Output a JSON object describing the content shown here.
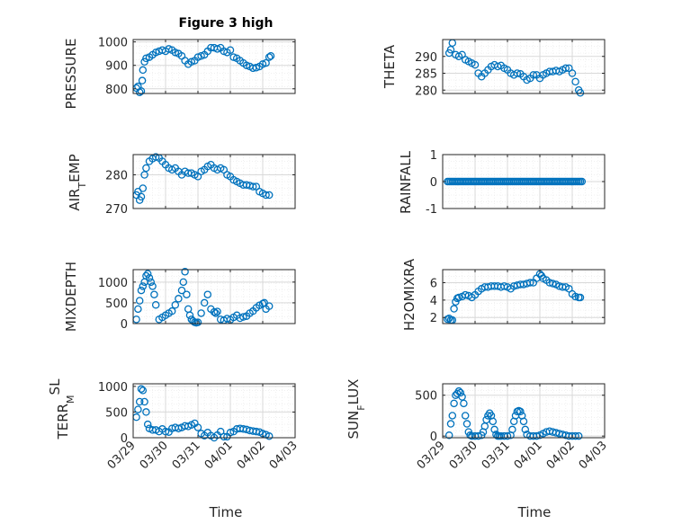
{
  "figure": {
    "title": "Figure 3 high",
    "xlabel": "Time",
    "xticks": [
      "03/29",
      "03/30",
      "03/31",
      "04/01",
      "04/02",
      "04/03"
    ],
    "marker_color": "#0072BD",
    "grid_color": "#d9d9d9",
    "axes_color": "#262626"
  },
  "chart_data": [
    {
      "type": "scatter",
      "ylabel": "PRESSURE",
      "yticks": [
        "800",
        "900",
        "1000"
      ],
      "ylim": [
        780,
        1010
      ],
      "xlim": [
        0,
        5
      ],
      "x": [
        0.1,
        0.15,
        0.2,
        0.25,
        0.28,
        0.3,
        0.35,
        0.4,
        0.5,
        0.6,
        0.7,
        0.8,
        0.9,
        1.0,
        1.1,
        1.2,
        1.3,
        1.4,
        1.5,
        1.6,
        1.7,
        1.8,
        1.9,
        2.0,
        2.1,
        2.2,
        2.3,
        2.4,
        2.5,
        2.6,
        2.7,
        2.8,
        2.9,
        3.0,
        3.1,
        3.2,
        3.3,
        3.4,
        3.5,
        3.6,
        3.7,
        3.8,
        3.9,
        4.0,
        4.1,
        4.2,
        4.25
      ],
      "y": [
        803,
        810,
        785,
        790,
        835,
        880,
        915,
        930,
        935,
        945,
        955,
        960,
        965,
        960,
        970,
        965,
        955,
        950,
        940,
        920,
        905,
        915,
        920,
        935,
        940,
        945,
        960,
        975,
        975,
        970,
        975,
        960,
        955,
        965,
        935,
        930,
        920,
        910,
        900,
        895,
        888,
        890,
        895,
        905,
        910,
        935,
        940
      ]
    },
    {
      "type": "scatter",
      "ylabel": "THETA",
      "yticks": [
        "280",
        "285",
        "290"
      ],
      "ylim": [
        279,
        295
      ],
      "xlim": [
        0,
        5
      ],
      "x": [
        0.2,
        0.25,
        0.3,
        0.4,
        0.5,
        0.6,
        0.7,
        0.8,
        0.9,
        1.0,
        1.1,
        1.2,
        1.3,
        1.4,
        1.5,
        1.6,
        1.7,
        1.8,
        1.9,
        2.0,
        2.1,
        2.2,
        2.3,
        2.4,
        2.5,
        2.6,
        2.7,
        2.8,
        2.9,
        3.0,
        3.1,
        3.2,
        3.3,
        3.4,
        3.5,
        3.6,
        3.7,
        3.8,
        3.9,
        4.0,
        4.1,
        4.2,
        4.25
      ],
      "y": [
        291,
        292,
        294,
        290.5,
        290,
        290.5,
        289,
        288.5,
        288,
        287.5,
        285,
        284,
        285,
        286,
        287,
        287.5,
        287,
        287.3,
        286.5,
        286,
        285,
        284.5,
        285,
        284.8,
        284,
        283,
        283.5,
        284.5,
        284.5,
        283.5,
        284.5,
        285,
        285.5,
        285.5,
        285.8,
        285.5,
        286,
        286.5,
        286.5,
        285,
        282.5,
        280,
        279.2
      ]
    },
    {
      "type": "scatter",
      "ylabel": "AIR_TEMP",
      "yticks": [
        "270",
        "280"
      ],
      "ylim": [
        270,
        286
      ],
      "xlim": [
        0,
        5
      ],
      "x": [
        0.1,
        0.15,
        0.2,
        0.25,
        0.3,
        0.35,
        0.4,
        0.5,
        0.6,
        0.7,
        0.8,
        0.9,
        1.0,
        1.1,
        1.2,
        1.3,
        1.4,
        1.5,
        1.6,
        1.7,
        1.8,
        1.9,
        2.0,
        2.1,
        2.2,
        2.3,
        2.4,
        2.5,
        2.6,
        2.7,
        2.8,
        2.9,
        3.0,
        3.1,
        3.2,
        3.3,
        3.4,
        3.5,
        3.6,
        3.7,
        3.8,
        3.9,
        4.0,
        4.1,
        4.2
      ],
      "y": [
        274,
        275,
        272.5,
        273.5,
        276,
        280,
        282,
        284,
        284.8,
        285.3,
        285,
        284,
        283,
        282,
        281.5,
        282,
        281,
        280,
        281,
        280.5,
        280.5,
        280,
        279.5,
        281,
        281.5,
        282.5,
        283,
        282,
        281.5,
        282,
        281.5,
        280,
        279.5,
        278.5,
        278,
        277.5,
        277,
        277,
        276.8,
        276.5,
        276.5,
        275,
        274.5,
        274,
        274
      ]
    },
    {
      "type": "scatter",
      "ylabel": "RAINFALL",
      "yticks": [
        "-1",
        "0",
        "1"
      ],
      "ylim": [
        -1,
        1
      ],
      "xlim": [
        0,
        5
      ],
      "x_range": [
        0.15,
        4.3
      ],
      "y_constant": 0
    },
    {
      "type": "scatter",
      "ylabel": "MIXDEPTH",
      "yticks": [
        "0",
        "500",
        "1000"
      ],
      "ylim": [
        0,
        1300
      ],
      "xlim": [
        0,
        5
      ],
      "x": [
        0.1,
        0.15,
        0.2,
        0.25,
        0.3,
        0.35,
        0.4,
        0.45,
        0.5,
        0.55,
        0.6,
        0.65,
        0.7,
        0.8,
        0.9,
        1.0,
        1.1,
        1.2,
        1.3,
        1.4,
        1.5,
        1.55,
        1.6,
        1.65,
        1.7,
        1.75,
        1.8,
        1.85,
        1.9,
        1.95,
        2.0,
        2.1,
        2.2,
        2.3,
        2.4,
        2.5,
        2.55,
        2.6,
        2.7,
        2.8,
        2.9,
        3.0,
        3.1,
        3.2,
        3.3,
        3.4,
        3.5,
        3.6,
        3.7,
        3.8,
        3.9,
        4.0,
        4.05,
        4.1,
        4.2
      ],
      "y": [
        100,
        350,
        550,
        800,
        900,
        1000,
        1150,
        1200,
        1100,
        1000,
        900,
        700,
        450,
        100,
        150,
        200,
        250,
        300,
        450,
        600,
        800,
        1000,
        1250,
        700,
        350,
        200,
        100,
        60,
        30,
        20,
        30,
        250,
        500,
        700,
        350,
        280,
        250,
        290,
        100,
        80,
        120,
        90,
        150,
        200,
        130,
        160,
        180,
        250,
        300,
        380,
        440,
        480,
        500,
        350,
        420
      ]
    },
    {
      "type": "scatter",
      "ylabel": "H2OMIXRA",
      "yticks": [
        "2",
        "4",
        "6"
      ],
      "ylim": [
        1.3,
        7.5
      ],
      "xlim": [
        0,
        5
      ],
      "x": [
        0.15,
        0.2,
        0.25,
        0.3,
        0.35,
        0.4,
        0.45,
        0.5,
        0.6,
        0.7,
        0.8,
        0.9,
        1.0,
        1.1,
        1.2,
        1.3,
        1.4,
        1.5,
        1.6,
        1.7,
        1.8,
        1.9,
        2.0,
        2.1,
        2.2,
        2.3,
        2.4,
        2.5,
        2.6,
        2.7,
        2.8,
        2.9,
        3.0,
        3.05,
        3.1,
        3.2,
        3.3,
        3.4,
        3.5,
        3.6,
        3.7,
        3.8,
        3.9,
        4.0,
        4.1,
        4.2,
        4.25
      ],
      "y": [
        1.8,
        1.9,
        1.7,
        1.7,
        3.0,
        3.8,
        4.2,
        4.3,
        4.4,
        4.6,
        4.5,
        4.3,
        4.6,
        5.0,
        5.3,
        5.5,
        5.5,
        5.6,
        5.6,
        5.6,
        5.5,
        5.6,
        5.5,
        5.3,
        5.6,
        5.7,
        5.8,
        5.8,
        5.9,
        6.0,
        6.0,
        6.5,
        7.0,
        6.8,
        6.5,
        6.3,
        6.0,
        5.9,
        5.8,
        5.6,
        5.5,
        5.5,
        5.3,
        4.7,
        4.4,
        4.3,
        4.3
      ]
    },
    {
      "type": "scatter",
      "ylabel": "TERR_MSL",
      "yticks": [
        "0",
        "500",
        "1000"
      ],
      "ylim": [
        0,
        1050
      ],
      "xlim": [
        0,
        5
      ],
      "x": [
        0.1,
        0.15,
        0.2,
        0.25,
        0.3,
        0.35,
        0.4,
        0.45,
        0.5,
        0.6,
        0.7,
        0.8,
        0.9,
        1.0,
        1.1,
        1.2,
        1.3,
        1.4,
        1.5,
        1.6,
        1.7,
        1.8,
        1.9,
        2.0,
        2.1,
        2.2,
        2.3,
        2.4,
        2.5,
        2.6,
        2.7,
        2.8,
        2.9,
        3.0,
        3.1,
        3.2,
        3.3,
        3.4,
        3.5,
        3.6,
        3.7,
        3.8,
        3.9,
        4.0,
        4.1,
        4.2
      ],
      "y": [
        400,
        550,
        700,
        950,
        920,
        700,
        500,
        260,
        180,
        150,
        150,
        120,
        170,
        120,
        110,
        180,
        200,
        180,
        200,
        230,
        220,
        250,
        280,
        200,
        80,
        40,
        100,
        40,
        0,
        50,
        120,
        20,
        20,
        100,
        120,
        170,
        180,
        170,
        160,
        140,
        130,
        120,
        110,
        80,
        60,
        30
      ]
    },
    {
      "type": "scatter",
      "ylabel": "SUN_FLUX",
      "yticks": [
        "0",
        "500"
      ],
      "ylim": [
        -20,
        640
      ],
      "xlim": [
        0,
        5
      ],
      "x": [
        0.2,
        0.25,
        0.3,
        0.35,
        0.4,
        0.45,
        0.5,
        0.55,
        0.6,
        0.65,
        0.7,
        0.75,
        0.8,
        0.85,
        0.9,
        1.0,
        1.1,
        1.2,
        1.25,
        1.3,
        1.35,
        1.4,
        1.45,
        1.5,
        1.55,
        1.6,
        1.65,
        1.7,
        1.75,
        1.8,
        1.9,
        2.0,
        2.1,
        2.15,
        2.2,
        2.25,
        2.3,
        2.35,
        2.4,
        2.45,
        2.5,
        2.55,
        2.6,
        2.7,
        2.8,
        2.9,
        3.0,
        3.1,
        3.2,
        3.3,
        3.4,
        3.5,
        3.6,
        3.7,
        3.8,
        3.9,
        4.0,
        4.1,
        4.2
      ],
      "y": [
        10,
        150,
        250,
        400,
        500,
        520,
        550,
        530,
        480,
        400,
        250,
        150,
        50,
        10,
        0,
        0,
        0,
        10,
        50,
        120,
        200,
        250,
        280,
        250,
        180,
        80,
        20,
        0,
        0,
        0,
        0,
        0,
        10,
        80,
        180,
        250,
        300,
        310,
        300,
        250,
        180,
        80,
        20,
        0,
        0,
        0,
        10,
        30,
        50,
        60,
        50,
        40,
        30,
        20,
        10,
        0,
        0,
        0,
        0
      ]
    }
  ]
}
